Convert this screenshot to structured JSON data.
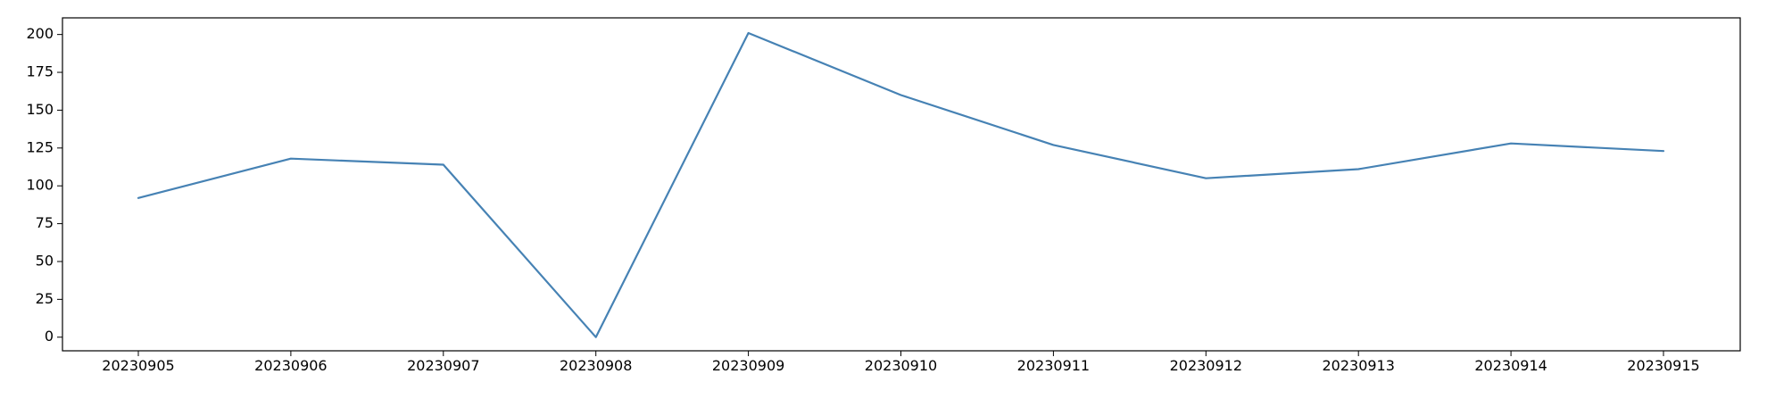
{
  "chart_data": {
    "type": "line",
    "title": "",
    "xlabel": "",
    "ylabel": "",
    "x": [
      "20230905",
      "20230906",
      "20230907",
      "20230908",
      "20230909",
      "20230910",
      "20230911",
      "20230912",
      "20230913",
      "20230914",
      "20230915"
    ],
    "series": [
      {
        "values": [
          92,
          118,
          114,
          0,
          201,
          160,
          127,
          105,
          111,
          128,
          123
        ],
        "color": "#4682b4"
      }
    ],
    "ylim": [
      -9,
      211
    ],
    "yticks": [
      0,
      25,
      50,
      75,
      100,
      125,
      150,
      175,
      200
    ],
    "grid": false,
    "legend": "none"
  }
}
